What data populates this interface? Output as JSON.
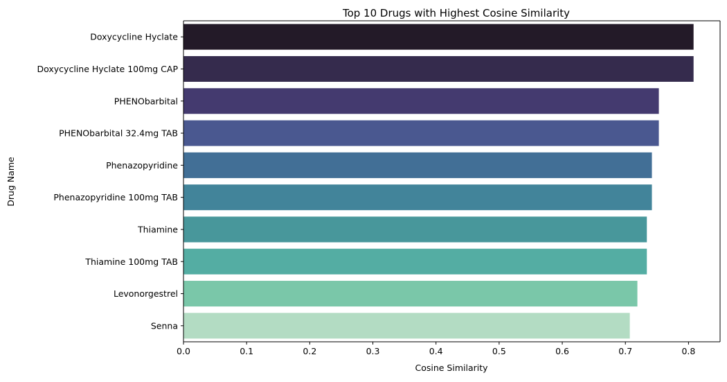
{
  "chart_data": {
    "type": "bar",
    "orientation": "horizontal",
    "title": "Top 10 Drugs with Highest Cosine Similarity",
    "xlabel": "Cosine Similarity",
    "ylabel": "Drug Name",
    "categories": [
      "Doxycycline Hyclate",
      "Doxycycline Hyclate 100mg CAP",
      "PHENObarbital",
      "PHENObarbital 32.4mg TAB",
      "Phenazopyridine",
      "Phenazopyridine 100mg TAB",
      "Thiamine",
      "Thiamine 100mg TAB",
      "Levonorgestrel",
      "Senna"
    ],
    "values": [
      0.808,
      0.808,
      0.753,
      0.753,
      0.742,
      0.742,
      0.734,
      0.734,
      0.719,
      0.707
    ],
    "colors": [
      "#231a28",
      "#352b4d",
      "#443a6f",
      "#4a5890",
      "#426f96",
      "#42849a",
      "#48979b",
      "#54ada3",
      "#7ac7a9",
      "#b3dcc3"
    ],
    "xlim": [
      0,
      0.85
    ],
    "xticks": [
      "0.0",
      "0.1",
      "0.2",
      "0.3",
      "0.4",
      "0.5",
      "0.6",
      "0.7",
      "0.8"
    ],
    "grid": false,
    "legend": "none"
  }
}
